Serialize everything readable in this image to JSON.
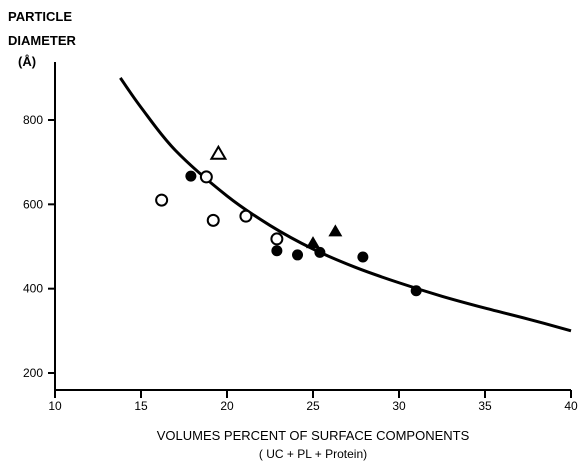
{
  "chart_data": {
    "type": "scatter",
    "title": "",
    "ylabel_lines": [
      "PARTICLE",
      "DIAMETER",
      "(Å)"
    ],
    "xlabel": "VOLUMES PERCENT OF SURFACE COMPONENTS",
    "xlabel_sub": "( UC + PL + Protein)",
    "xlim": [
      10,
      40
    ],
    "ylim": [
      200,
      900
    ],
    "x_ticks": [
      10,
      15,
      20,
      25,
      30,
      35,
      40
    ],
    "y_ticks": [
      200,
      400,
      600,
      800
    ],
    "grid": false,
    "legend": "none",
    "series": [
      {
        "marker": "open-circle",
        "points": [
          {
            "x": 16.2,
            "y": 610
          },
          {
            "x": 18.8,
            "y": 665
          },
          {
            "x": 19.2,
            "y": 562
          },
          {
            "x": 21.1,
            "y": 572
          },
          {
            "x": 22.9,
            "y": 518
          }
        ]
      },
      {
        "marker": "filled-circle",
        "points": [
          {
            "x": 17.9,
            "y": 667
          },
          {
            "x": 22.9,
            "y": 490
          },
          {
            "x": 24.1,
            "y": 480
          },
          {
            "x": 25.4,
            "y": 486
          },
          {
            "x": 27.9,
            "y": 475
          },
          {
            "x": 31.0,
            "y": 395
          }
        ]
      },
      {
        "marker": "open-triangle",
        "points": [
          {
            "x": 19.5,
            "y": 720
          }
        ]
      },
      {
        "marker": "filled-triangle",
        "points": [
          {
            "x": 25.0,
            "y": 508
          },
          {
            "x": 26.3,
            "y": 536
          }
        ]
      }
    ],
    "fit_curve": {
      "points": [
        {
          "x": 13.8,
          "y": 900
        },
        {
          "x": 15,
          "y": 830
        },
        {
          "x": 17,
          "y": 728
        },
        {
          "x": 20,
          "y": 620
        },
        {
          "x": 22.5,
          "y": 550
        },
        {
          "x": 25,
          "y": 494
        },
        {
          "x": 27.5,
          "y": 450
        },
        {
          "x": 30,
          "y": 414
        },
        {
          "x": 32.5,
          "y": 382
        },
        {
          "x": 35,
          "y": 354
        },
        {
          "x": 37.5,
          "y": 328
        },
        {
          "x": 40,
          "y": 300
        }
      ]
    }
  }
}
